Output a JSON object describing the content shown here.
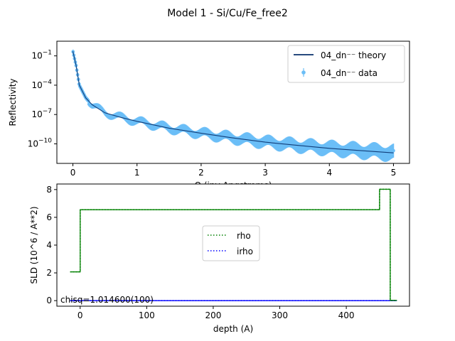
{
  "figure": {
    "title": "Model 1 - Si/Cu/Fe_free2",
    "chisq_text": "chisq=1.014600(100)"
  },
  "chart_data": [
    {
      "type": "scatter",
      "xlabel": "Q (inv Angstroms)",
      "ylabel": "Reflectivity",
      "yscale": "log",
      "xlim": [
        -0.25,
        5.25
      ],
      "ylim": [
        1e-12,
        3.16
      ],
      "x_ticks": [
        0,
        1,
        2,
        3,
        4,
        5
      ],
      "y_ticks": [
        {
          "value": 0.1,
          "label": "10^-1"
        },
        {
          "value": 0.0001,
          "label": "10^-4"
        },
        {
          "value": 1e-07,
          "label": "10^-7"
        },
        {
          "value": 1e-10,
          "label": "10^-10"
        }
      ],
      "legend_position": "upper right",
      "series": [
        {
          "name": "04_dn⁻⁻ theory",
          "kind": "line",
          "color": "#08306b",
          "x": [
            0.0,
            0.05,
            0.1,
            0.2,
            0.3,
            0.5,
            0.75,
            1.0,
            1.5,
            2.0,
            2.5,
            3.0,
            3.5,
            4.0,
            4.5,
            5.0
          ],
          "y": [
            0.3,
            0.01,
            0.0001,
            5e-06,
            1e-06,
            1.5e-07,
            5e-08,
            2e-08,
            4e-09,
            1.2e-09,
            4e-10,
            1.5e-10,
            7e-11,
            3.5e-11,
            2e-11,
            1.2e-11
          ]
        },
        {
          "name": "04_dn⁻⁻ data",
          "kind": "errorbar",
          "color": "#6bbef7",
          "x": [
            0.0,
            0.05,
            0.1,
            0.2,
            0.3,
            0.5,
            0.75,
            1.0,
            1.5,
            2.0,
            2.5,
            3.0,
            3.5,
            4.0,
            4.5,
            5.0
          ],
          "y": [
            0.3,
            0.01,
            0.0001,
            5e-06,
            1e-06,
            1.5e-07,
            5e-08,
            2e-08,
            4e-09,
            1.2e-09,
            4e-10,
            1.5e-10,
            7e-11,
            3.5e-11,
            2e-11,
            1.2e-11
          ]
        }
      ]
    },
    {
      "type": "line",
      "xlabel": "depth (A)",
      "ylabel": "SLD (10^6 / A**2)",
      "xlim": [
        -35,
        495
      ],
      "ylim": [
        -0.4,
        8.4
      ],
      "x_ticks": [
        0,
        100,
        200,
        300,
        400
      ],
      "y_ticks": [
        0,
        2,
        4,
        6,
        8
      ],
      "legend_position": "center",
      "series": [
        {
          "name": "rho",
          "style": "dotted",
          "color": "#008000",
          "x": [
            -15,
            0,
            0,
            450,
            450,
            466,
            466,
            476
          ],
          "y": [
            2.07,
            2.07,
            6.55,
            6.55,
            8.02,
            8.02,
            0.02,
            0.02
          ]
        },
        {
          "name": "irho",
          "style": "dotted",
          "color": "#0000ff",
          "x": [
            -15,
            476
          ],
          "y": [
            0.0,
            0.0
          ]
        }
      ]
    }
  ]
}
